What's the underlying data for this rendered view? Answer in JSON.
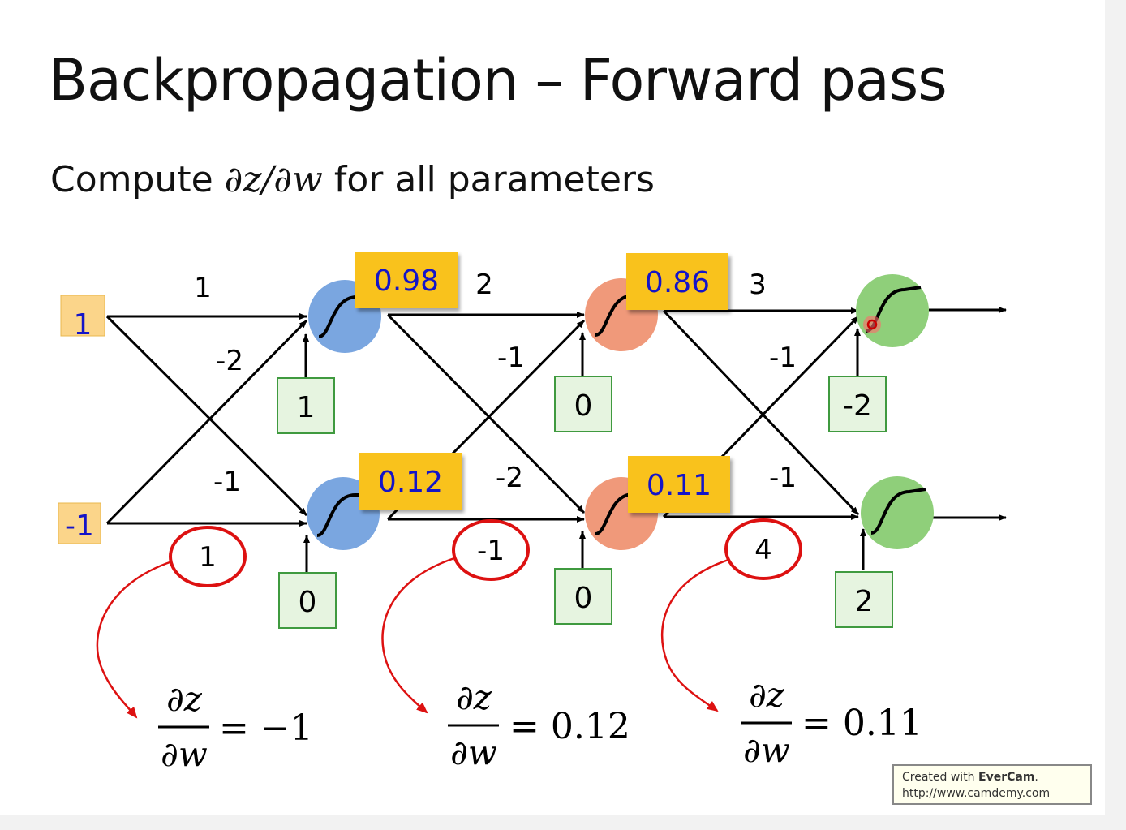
{
  "slide": {
    "title": "Backpropagation – Forward pass",
    "subtitle_prefix": "Compute",
    "subtitle_math": "∂z/∂w",
    "subtitle_suffix": "for all parameters"
  },
  "inputs": [
    "1",
    "-1"
  ],
  "weights": {
    "layer1": {
      "top_top": "1",
      "bottom_top": "-2",
      "top_bottom": "-1",
      "bottom_bottom": "1"
    },
    "layer2": {
      "top_top": "2",
      "bottom_top": "-1",
      "top_bottom": "-2",
      "bottom_bottom": "-1"
    },
    "layer3": {
      "top_top": "3",
      "bottom_top": "-1",
      "top_bottom": "-1",
      "bottom_bottom": "4"
    }
  },
  "biases": {
    "layer1": [
      "1",
      "0"
    ],
    "layer2": [
      "0",
      "0"
    ],
    "layer3": [
      "-2",
      "2"
    ]
  },
  "activations": {
    "layer1": [
      "0.98",
      "0.12"
    ],
    "layer2": [
      "0.86",
      "0.11"
    ]
  },
  "derivatives": [
    {
      "numerator": "∂z",
      "denominator": "∂w",
      "value": "= −1"
    },
    {
      "numerator": "∂z",
      "denominator": "∂w",
      "value": "= 0.12"
    },
    {
      "numerator": "∂z",
      "denominator": "∂w",
      "value": "= 0.11"
    }
  ],
  "watermark": {
    "line1_prefix": "Created with",
    "line1_brand": "EverCam",
    "line1_suffix": ".",
    "line2": "http://www.camdemy.com"
  },
  "colors": {
    "input_fill": "#fbd58a",
    "layer1_neuron": "#7aa6e0",
    "layer2_neuron": "#f0997a",
    "layer3_neuron": "#8fcf7a",
    "bias_fill": "#e6f4e0",
    "bias_border": "#3f9a3f",
    "activation_fill": "#f9c21a",
    "number_blue": "#1414c8",
    "highlight_red": "#dd1111"
  }
}
